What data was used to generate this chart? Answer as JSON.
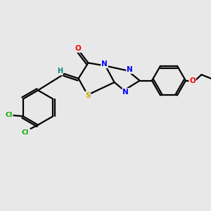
{
  "background_color": "#e8e8e8",
  "atom_colors": {
    "C": "#000000",
    "H": "#008080",
    "Cl": "#00aa00",
    "N": "#0000ff",
    "O": "#ff0000",
    "S": "#ccaa00"
  },
  "bond_color": "#000000",
  "figsize": [
    3.0,
    3.0
  ],
  "dpi": 100
}
